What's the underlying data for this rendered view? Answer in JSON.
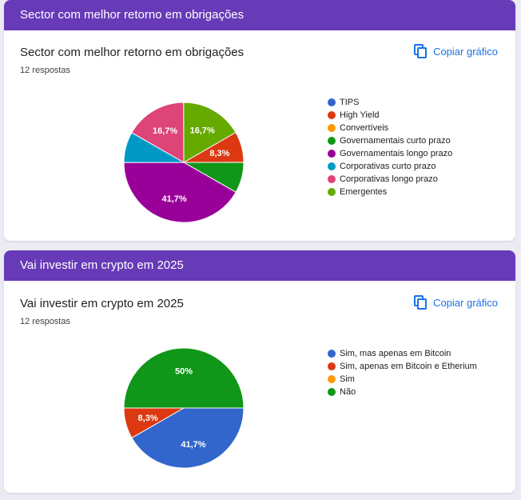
{
  "cards": [
    {
      "header": "Sector com melhor retorno em obrigações",
      "title": "Sector com melhor retorno em obrigações",
      "responses": "12 respostas",
      "copy_label": "Copiar gráfico",
      "copy_icon": "copy-icon"
    },
    {
      "header": "Vai investir em crypto em 2025",
      "title": "Vai investir em crypto em 2025",
      "responses": "12 respostas",
      "copy_label": "Copiar gráfico",
      "copy_icon": "copy-icon"
    }
  ],
  "chart_data": [
    {
      "type": "pie",
      "categories": [
        "TIPS",
        "High Yield",
        "Convertíveis",
        "Governamentais curto prazo",
        "Governamentais longo prazo",
        "Corporativas curto prazo",
        "Corporativas longo prazo",
        "Emergentes"
      ],
      "values": [
        0,
        8.3,
        0,
        8.3,
        41.7,
        8.3,
        16.7,
        16.7
      ],
      "slice_labels": [
        "",
        "8,3%",
        "",
        "",
        "41,7%",
        "",
        "16,7%",
        "16,7%"
      ],
      "colors": [
        "#3366cc",
        "#dc3912",
        "#ff9900",
        "#109618",
        "#990099",
        "#0099c6",
        "#dd4477",
        "#66aa00"
      ],
      "legend_position": "right"
    },
    {
      "type": "pie",
      "categories": [
        "Sim, mas apenas em Bitcoin",
        "Sim, apenas em Bitcoin e Etherium",
        "Sim",
        "Não"
      ],
      "values": [
        41.7,
        8.3,
        0,
        50
      ],
      "slice_labels": [
        "41,7%",
        "8,3%",
        "",
        "50%"
      ],
      "colors": [
        "#3366cc",
        "#dc3912",
        "#ff9900",
        "#109618"
      ],
      "legend_position": "right"
    }
  ]
}
